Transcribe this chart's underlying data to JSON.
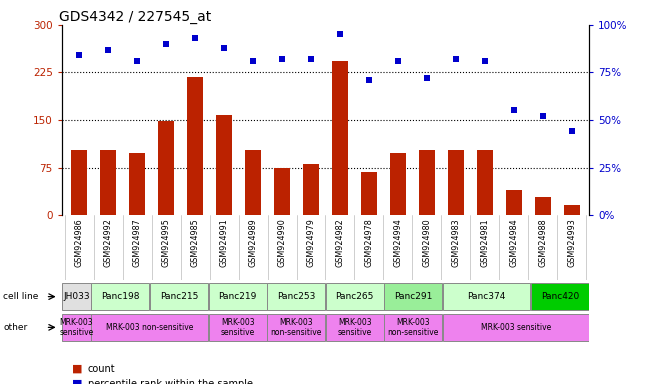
{
  "title": "GDS4342 / 227545_at",
  "samples": [
    "GSM924986",
    "GSM924992",
    "GSM924987",
    "GSM924995",
    "GSM924985",
    "GSM924991",
    "GSM924989",
    "GSM924990",
    "GSM924979",
    "GSM924982",
    "GSM924978",
    "GSM924994",
    "GSM924980",
    "GSM924983",
    "GSM924981",
    "GSM924984",
    "GSM924988",
    "GSM924993"
  ],
  "bar_values": [
    103,
    103,
    98,
    148,
    218,
    158,
    103,
    74,
    80,
    243,
    68,
    98,
    103,
    103,
    103,
    40,
    28,
    16
  ],
  "dot_values": [
    84,
    87,
    81,
    90,
    93,
    88,
    81,
    82,
    82,
    95,
    71,
    81,
    72,
    82,
    81,
    55,
    52,
    44
  ],
  "cell_lines": [
    {
      "name": "JH033",
      "start": 0,
      "end": 1,
      "color": "#e0e0e0"
    },
    {
      "name": "Panc198",
      "start": 1,
      "end": 3,
      "color": "#ccffcc"
    },
    {
      "name": "Panc215",
      "start": 3,
      "end": 5,
      "color": "#ccffcc"
    },
    {
      "name": "Panc219",
      "start": 5,
      "end": 7,
      "color": "#ccffcc"
    },
    {
      "name": "Panc253",
      "start": 7,
      "end": 9,
      "color": "#ccffcc"
    },
    {
      "name": "Panc265",
      "start": 9,
      "end": 11,
      "color": "#ccffcc"
    },
    {
      "name": "Panc291",
      "start": 11,
      "end": 13,
      "color": "#99ee99"
    },
    {
      "name": "Panc374",
      "start": 13,
      "end": 16,
      "color": "#ccffcc"
    },
    {
      "name": "Panc420",
      "start": 16,
      "end": 18,
      "color": "#00cc00"
    }
  ],
  "other_rows": [
    {
      "label": "MRK-003\nsensitive",
      "start": 0,
      "end": 1,
      "color": "#ee82ee"
    },
    {
      "label": "MRK-003 non-sensitive",
      "start": 1,
      "end": 5,
      "color": "#ee82ee"
    },
    {
      "label": "MRK-003\nsensitive",
      "start": 5,
      "end": 7,
      "color": "#ee82ee"
    },
    {
      "label": "MRK-003\nnon-sensitive",
      "start": 7,
      "end": 9,
      "color": "#ee82ee"
    },
    {
      "label": "MRK-003\nsensitive",
      "start": 9,
      "end": 11,
      "color": "#ee82ee"
    },
    {
      "label": "MRK-003\nnon-sensitive",
      "start": 11,
      "end": 13,
      "color": "#ee82ee"
    },
    {
      "label": "MRK-003 sensitive",
      "start": 13,
      "end": 18,
      "color": "#ee82ee"
    }
  ],
  "ylim_left": [
    0,
    300
  ],
  "ylim_right": [
    0,
    100
  ],
  "yticks_left": [
    0,
    75,
    150,
    225,
    300
  ],
  "yticks_right": [
    0,
    25,
    50,
    75,
    100
  ],
  "ytick_labels_left": [
    "0",
    "75",
    "150",
    "225",
    "300"
  ],
  "ytick_labels_right": [
    "0%",
    "25%",
    "50%",
    "75%",
    "100%"
  ],
  "bar_color": "#bb2200",
  "dot_color": "#0000cc",
  "hlines": [
    75,
    150,
    225
  ],
  "title_fontsize": 10,
  "bar_width": 0.55,
  "cell_line_row_label": "cell line",
  "other_row_label": "other",
  "legend": [
    {
      "label": "count",
      "color": "#bb2200"
    },
    {
      "label": "percentile rank within the sample",
      "color": "#0000cc"
    }
  ]
}
